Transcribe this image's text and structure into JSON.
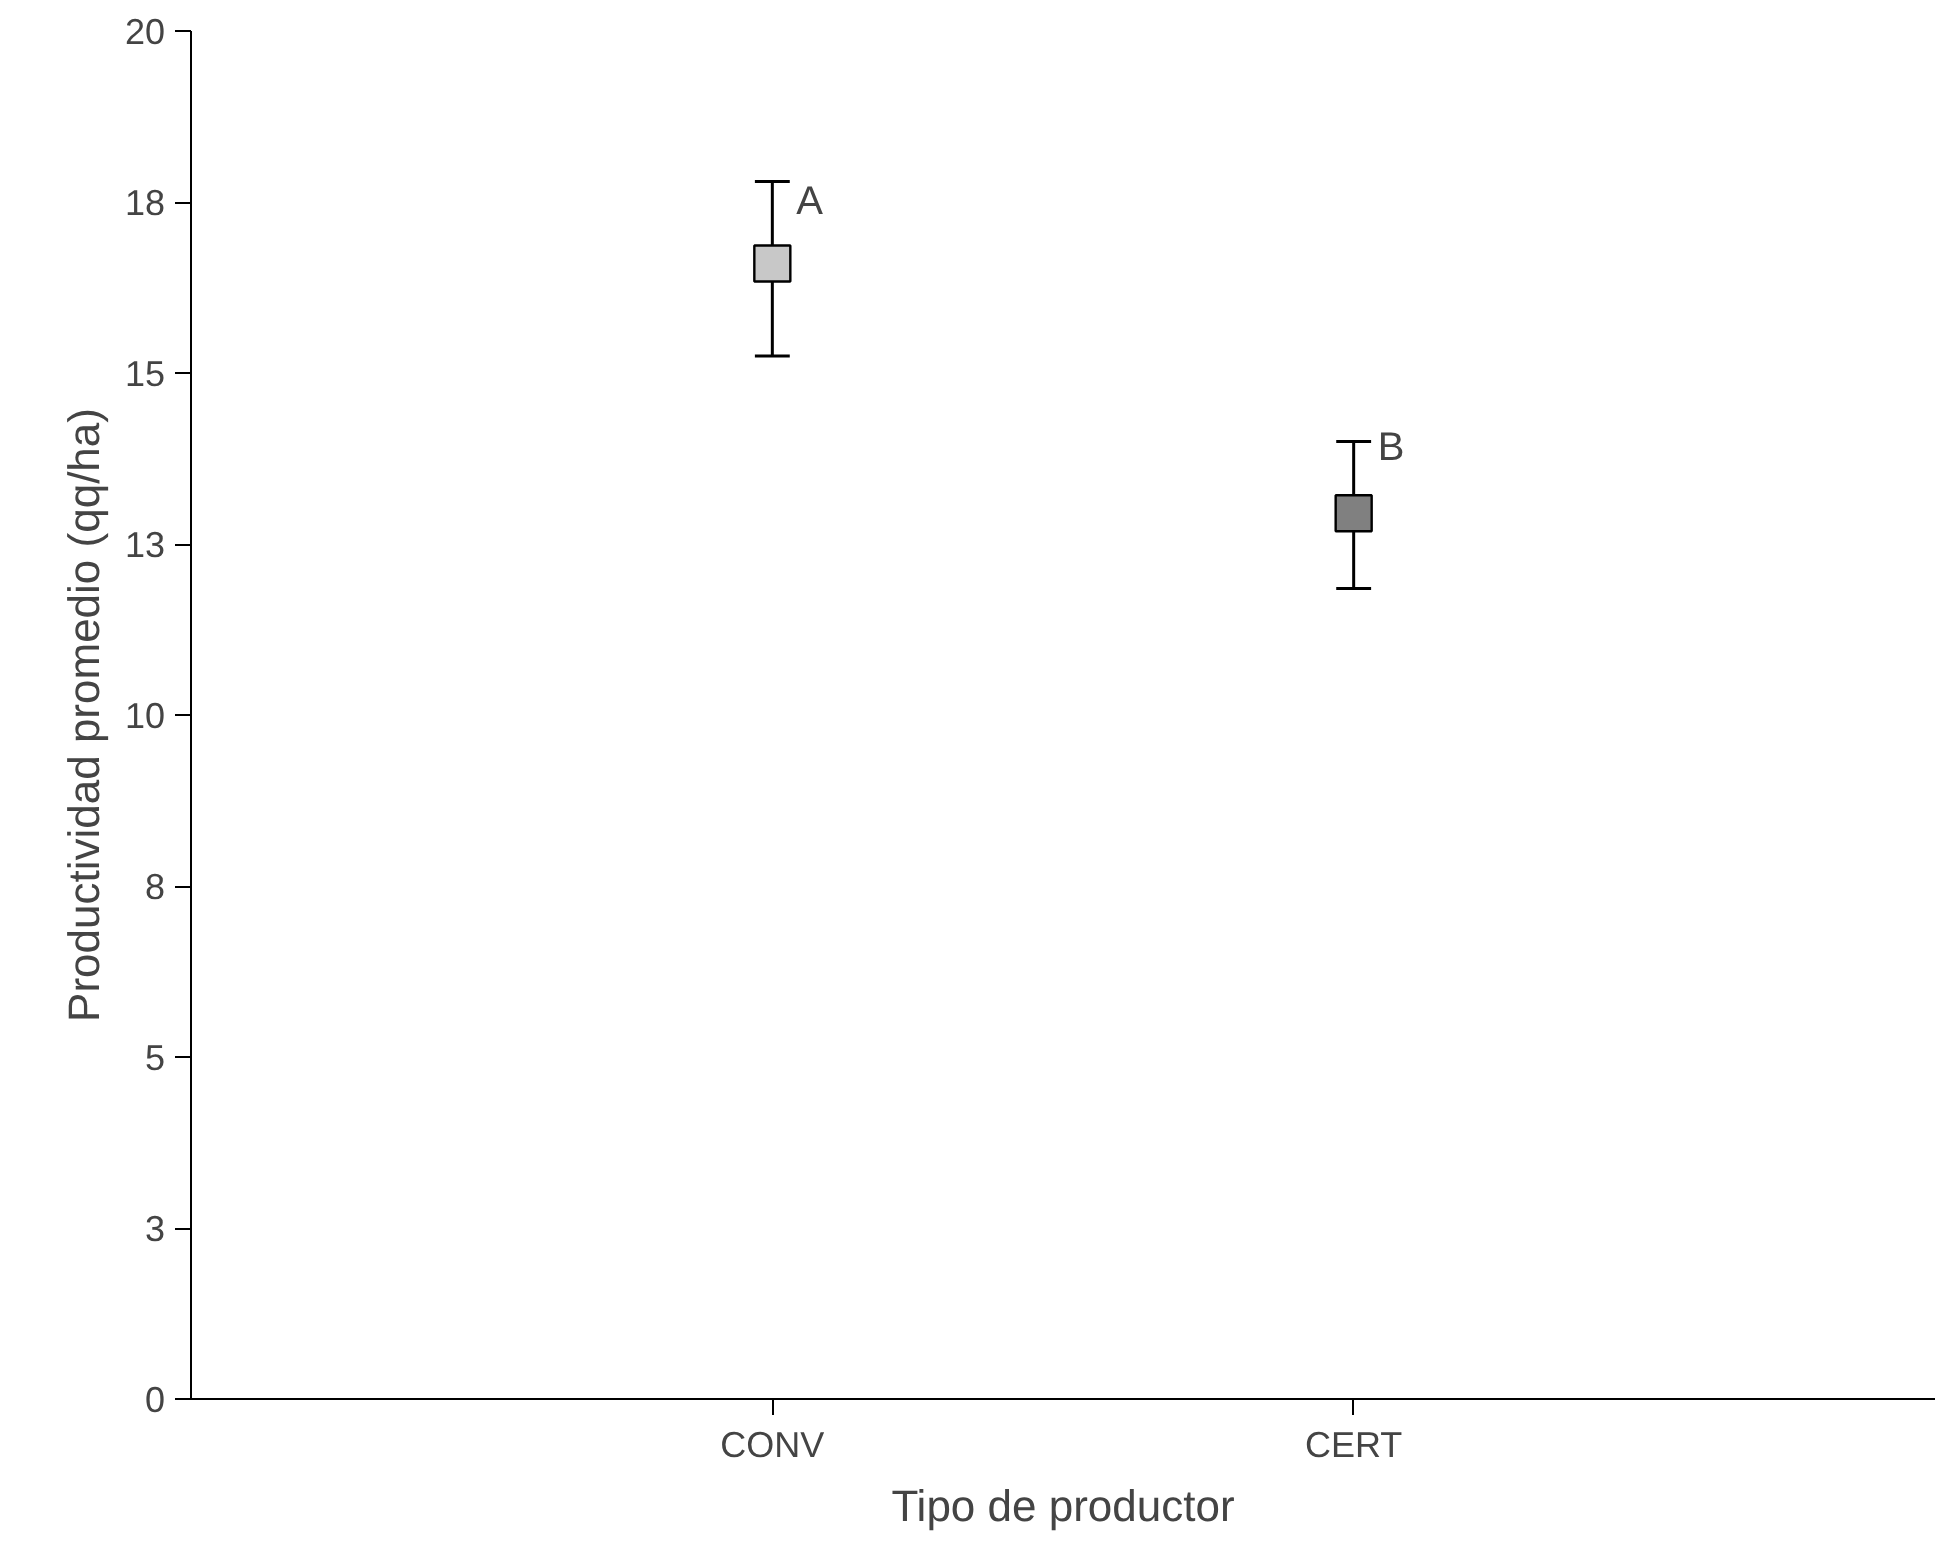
{
  "chart_data": {
    "type": "scatter",
    "xlabel": "Tipo de productor",
    "ylabel": "Productividad promedio (qq/ha)",
    "categories": [
      "CONV",
      "CERT"
    ],
    "values": [
      16.6,
      12.95
    ],
    "colors": [
      "#c8c8c8",
      "#808080"
    ],
    "errors": [
      [
        15.25,
        17.8
      ],
      [
        11.85,
        14.0
      ]
    ],
    "marker": "square",
    "ylim": [
      0,
      20
    ],
    "yticks": [
      0,
      {
        "value": 2.5,
        "label": "3"
      },
      5,
      {
        "value": 7.5,
        "label": "8"
      },
      10,
      {
        "value": 12.5,
        "label": "13"
      },
      15,
      {
        "value": 17.5,
        "label": "18"
      },
      20
    ],
    "grid": false,
    "annotations": [
      {
        "text": "A",
        "x": "CONV",
        "y": 17.5
      },
      {
        "text": "B",
        "x": "CERT",
        "y": 13.9
      }
    ]
  }
}
